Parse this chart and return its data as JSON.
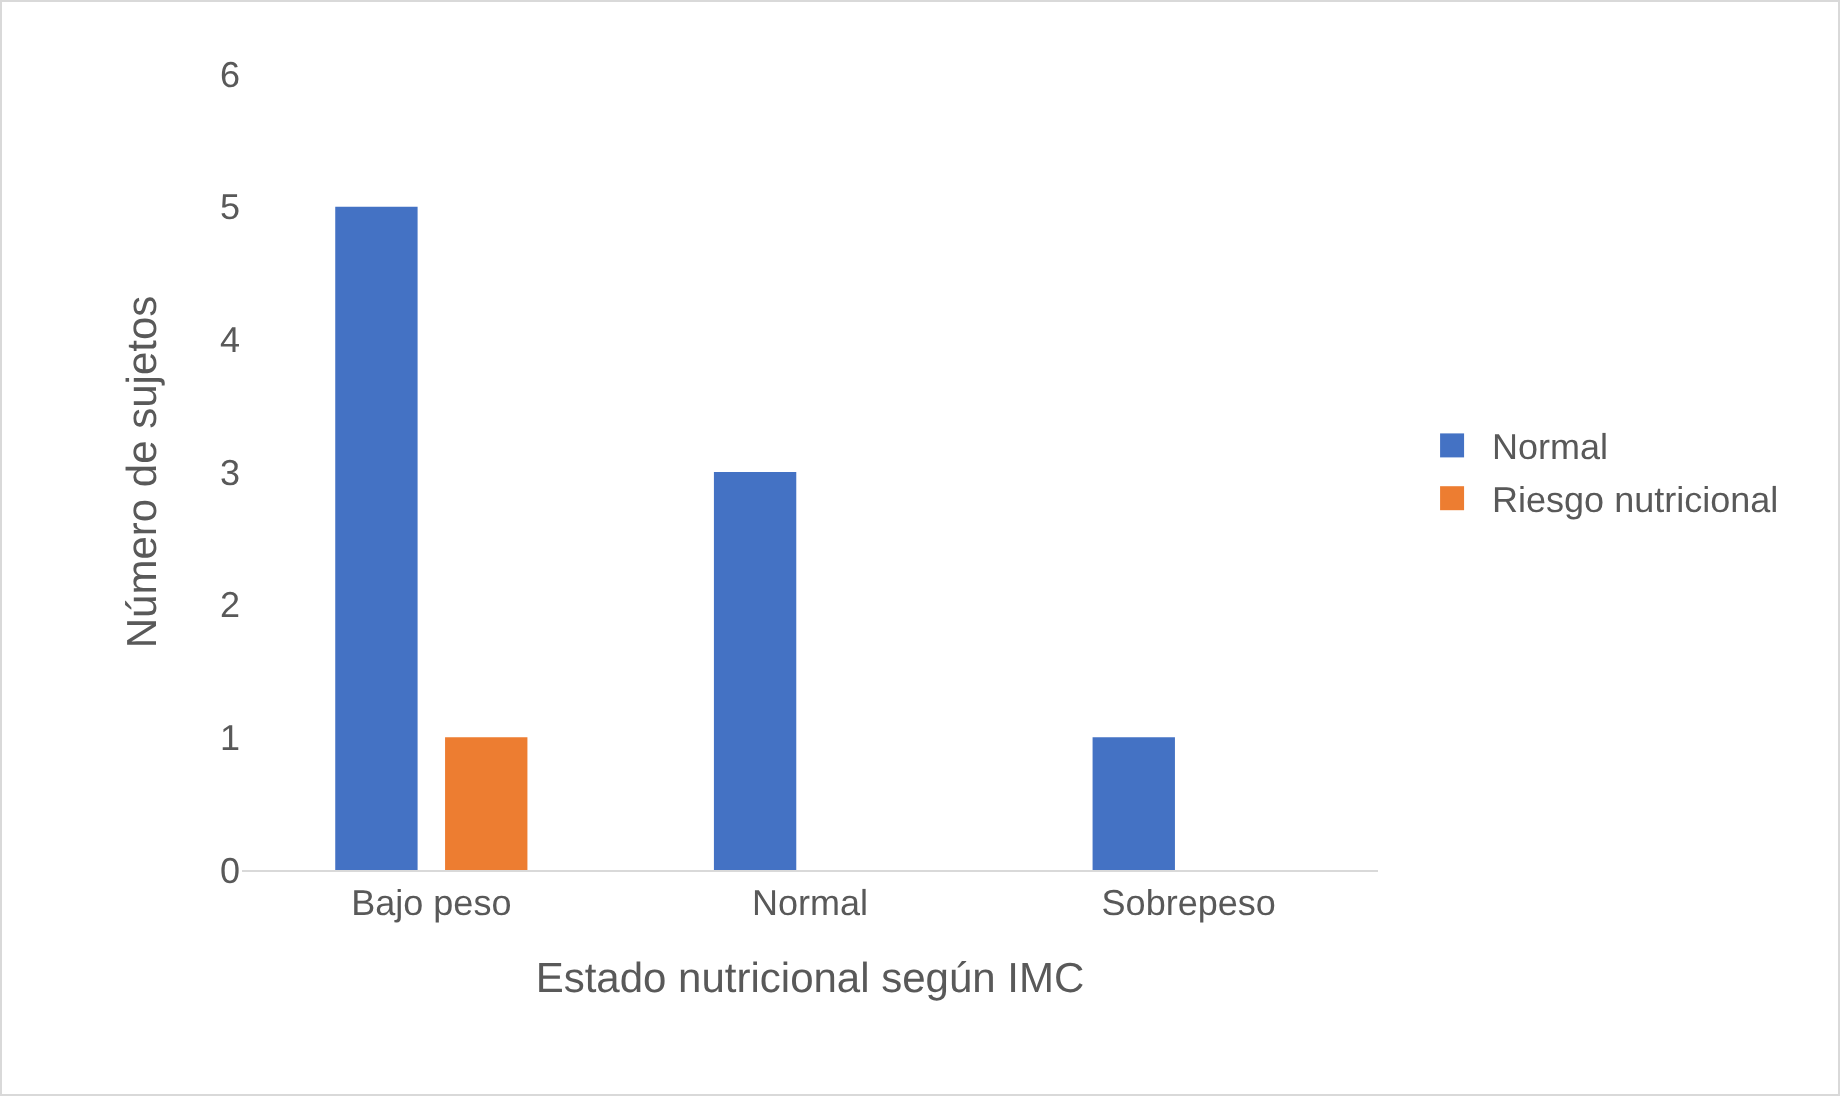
{
  "chart_data": {
    "type": "bar",
    "xlabel": "Estado nutricional según IMC",
    "ylabel": "Número de sujetos",
    "categories": [
      "Bajo peso",
      "Normal",
      "Sobrepeso"
    ],
    "series": [
      {
        "name": "Normal",
        "color": "#4472c4",
        "values": [
          5,
          3,
          1
        ]
      },
      {
        "name": "Riesgo nutricional",
        "color": "#ed7d31",
        "values": [
          1,
          0,
          0
        ]
      }
    ],
    "ylim": [
      0,
      6
    ],
    "yticks": [
      0,
      1,
      2,
      3,
      4,
      5,
      6
    ],
    "grid": false,
    "legend": "right"
  }
}
